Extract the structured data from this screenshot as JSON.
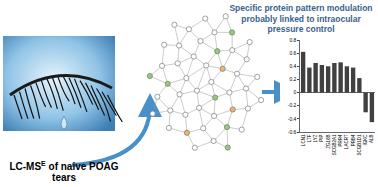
{
  "title_lines": [
    "Specific protein pattern modulation",
    "probably linked to intraocular pressure control"
  ],
  "method": {
    "prefix": "LC-MS",
    "superscript": "E",
    "suffix": " of naive POAG tears"
  },
  "chart_data": {
    "type": "bar",
    "categories": [
      "LCN1",
      "LTF",
      "LYZ",
      "PIP",
      "ZG16B",
      "SCGB2A1",
      "PRR4",
      "LACRT",
      "PRB4",
      "SCGB1D1",
      "IGKC",
      "ALB"
    ],
    "values": [
      0.62,
      0.38,
      0.45,
      0.42,
      0.4,
      0.45,
      0.46,
      0.4,
      0.38,
      0.22,
      -0.3,
      -0.45
    ],
    "color": "#404040",
    "ylim": [
      -0.6,
      0.8
    ],
    "yticks": [
      -0.6,
      -0.4,
      -0.2,
      0,
      0.2,
      0.4,
      0.6,
      0.8
    ],
    "grid": false
  }
}
